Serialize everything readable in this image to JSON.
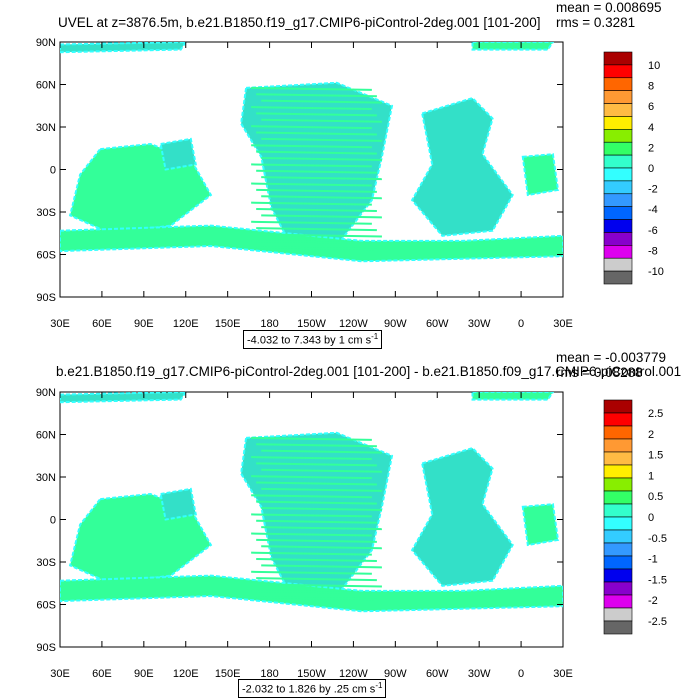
{
  "panel1": {
    "title": "UVEL at z=3876.5m, b.e21.B1850.f19_g17.CMIP6-piControl-2deg.001 [101-200]",
    "mean": "mean = 0.008695",
    "rms": "rms = 0.3281",
    "range_text": "-4.032 to 7.343 by 1 cm s",
    "range_exp": "-1",
    "colorbar": [
      "10",
      "8",
      "6",
      "4",
      "2",
      "0",
      "-2",
      "-4",
      "-6",
      "-8",
      "-10"
    ]
  },
  "panel2": {
    "title": "b.e21.B1850.f19_g17.CMIP6-piControl-2deg.001 [101-200] - b.e21.B1850.f09_g17.CMIP6-piControl.001",
    "mean": "mean = -0.003779",
    "rms": "rms = 0.08288",
    "range_text": "-2.032 to 1.826 by .25 cm s",
    "range_exp": "-1",
    "colorbar": [
      "2.5",
      "2",
      "1.5",
      "1",
      "0.5",
      "0",
      "-0.5",
      "-1",
      "-1.5",
      "-2",
      "-2.5"
    ]
  },
  "lat_labels": [
    "90N",
    "60N",
    "30N",
    "0",
    "30S",
    "60S",
    "90S"
  ],
  "lon_labels": [
    "30E",
    "60E",
    "90E",
    "120E",
    "150E",
    "180",
    "150W",
    "120W",
    "90W",
    "60W",
    "30W",
    "0",
    "30E"
  ],
  "colors": {
    "ocean_main": "#33e0c8",
    "ocean_alt": "#33ff99",
    "ocean_cyan": "#33ffff",
    "land": "#ffffff",
    "colorbar": [
      "#aa0000",
      "#ff0000",
      "#ff6600",
      "#ff9933",
      "#ffbb44",
      "#ffee00",
      "#88ee00",
      "#33ff66",
      "#33ffcc",
      "#33ffff",
      "#33ccff",
      "#3399ff",
      "#0066ff",
      "#0000ee",
      "#8800cc",
      "#dd00ee",
      "#cccccc",
      "#666666"
    ]
  }
}
